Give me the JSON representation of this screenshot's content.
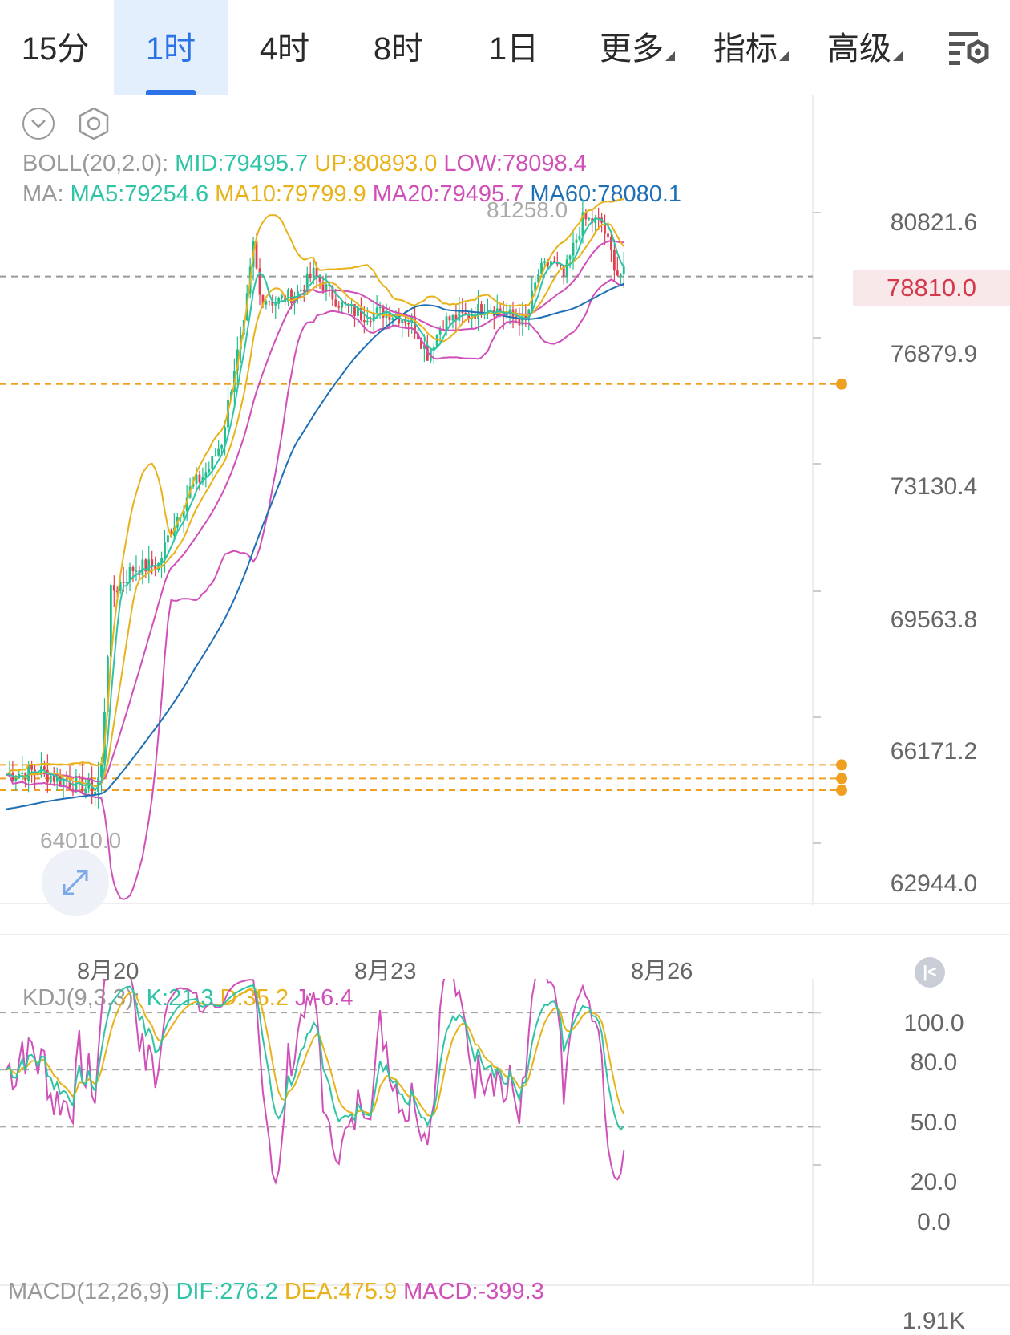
{
  "tabs": [
    {
      "label": "15分",
      "active": false
    },
    {
      "label": "1时",
      "active": true
    },
    {
      "label": "4时",
      "active": false
    },
    {
      "label": "8时",
      "active": false
    },
    {
      "label": "1日",
      "active": false
    },
    {
      "label": "更多",
      "active": false
    },
    {
      "label": "指标",
      "active": false
    },
    {
      "label": "高级",
      "active": false
    }
  ],
  "toolbar": {
    "menu_icon": "settings-list-icon",
    "collapse_icon": "chevron-down-circle-icon",
    "settings_icon": "hexagon-settings-icon"
  },
  "boll": {
    "label": "BOLL(20,2.0):",
    "mid": "MID:79495.7",
    "up": "UP:80893.0",
    "low": "LOW:78098.4"
  },
  "ma": {
    "label": "MA:",
    "ma5": "MA5:79254.6",
    "ma10": "MA10:79799.9",
    "ma20": "MA20:79495.7",
    "ma60": "MA60:78080.1"
  },
  "main_axis": [
    "80821.6",
    "76879.9",
    "73130.4",
    "69563.8",
    "66171.2",
    "62944.0"
  ],
  "last_price": "78810.0",
  "high_marker": "81258.0",
  "low_marker": "64010.0",
  "x_labels": [
    "8月20",
    "8月23",
    "8月26"
  ],
  "kdj": {
    "label": "KDJ(9,3,3):",
    "k": "K:21.3",
    "d": "D:35.2",
    "j": "J:-6.4"
  },
  "kdj_axis": [
    "100.0",
    "80.0",
    "50.0",
    "20.0",
    "0.0"
  ],
  "macd": {
    "label": "MACD(12,26,9)",
    "dif": "DIF:276.2",
    "dea": "DEA:475.9",
    "macd": "MACD:-399.3"
  },
  "macd_axis_top": "1.91K",
  "colors": {
    "accent": "#2b73e6",
    "up": "#1fbe8b",
    "down": "#e0404f",
    "ma5": "#2fc4a6",
    "ma10": "#e8b21a",
    "ma20": "#d04fb8",
    "ma60": "#1f6fb5",
    "alert": "#f0a020"
  },
  "chart_data": {
    "type": "line",
    "title": "",
    "interval": "1时",
    "x_ticks": [
      "8月20",
      "8月23",
      "8月26"
    ],
    "y_ticks": [
      80821.6,
      76879.9,
      73130.4,
      69563.8,
      66171.2,
      62944.0
    ],
    "ylim": [
      62300,
      82000
    ],
    "series": [
      {
        "name": "MA5",
        "last": 79254.6
      },
      {
        "name": "MA10",
        "last": 79799.9
      },
      {
        "name": "MA20",
        "last": 79495.7
      },
      {
        "name": "MA60",
        "last": 78080.1
      }
    ],
    "bollinger": {
      "mid": 79495.7,
      "up": 80893.0,
      "low": 78098.4
    },
    "max_price": 81258.0,
    "min_price": 64010.0,
    "last_price": 78810.0,
    "alert_lines": [
      75500,
      64950,
      64600,
      64300
    ],
    "kdj": {
      "K": 21.3,
      "D": 35.2,
      "J": -6.4
    },
    "macd": {
      "DIF": 276.2,
      "DEA": 475.9,
      "MACD": -399.3
    }
  }
}
